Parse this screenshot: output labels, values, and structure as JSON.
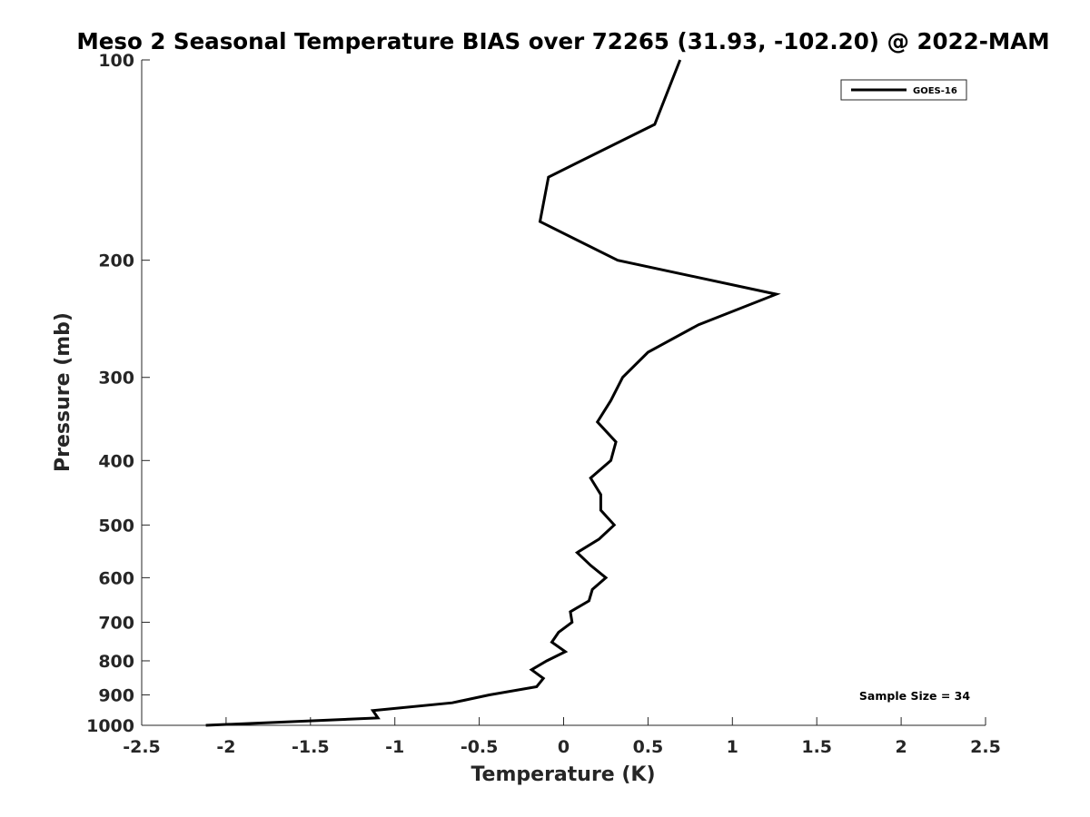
{
  "chart_data": {
    "type": "line",
    "title": "Meso 2 Seasonal Temperature BIAS over 72265 (31.93, -102.20) @ 2022-MAM",
    "xlabel": "Temperature (K)",
    "ylabel": "Pressure (mb)",
    "xlim": [
      -2.5,
      2.5
    ],
    "ylim": [
      100,
      1000
    ],
    "yscale": "log",
    "y_reversed": true,
    "x_ticks": [
      "-2.5",
      "-2",
      "-1.5",
      "-1",
      "-0.5",
      "0",
      "0.5",
      "1",
      "1.5",
      "2",
      "2.5"
    ],
    "y_ticks": [
      "100",
      "200",
      "300",
      "400",
      "500",
      "600",
      "700",
      "800",
      "900",
      "1000"
    ],
    "grid": false,
    "legend_position": "top-right",
    "annotation": "Sample Size = 34",
    "series": [
      {
        "name": "GOES-16",
        "color": "#000000",
        "points": [
          [
            0.69,
            100
          ],
          [
            0.54,
            125
          ],
          [
            -0.09,
            150
          ],
          [
            -0.14,
            175
          ],
          [
            0.32,
            200
          ],
          [
            1.26,
            225
          ],
          [
            0.8,
            250
          ],
          [
            0.5,
            275
          ],
          [
            0.35,
            300
          ],
          [
            0.28,
            325
          ],
          [
            0.2,
            350
          ],
          [
            0.31,
            375
          ],
          [
            0.28,
            400
          ],
          [
            0.16,
            425
          ],
          [
            0.22,
            450
          ],
          [
            0.22,
            475
          ],
          [
            0.3,
            500
          ],
          [
            0.21,
            525
          ],
          [
            0.08,
            550
          ],
          [
            0.16,
            575
          ],
          [
            0.25,
            600
          ],
          [
            0.17,
            625
          ],
          [
            0.15,
            650
          ],
          [
            0.04,
            675
          ],
          [
            0.05,
            700
          ],
          [
            -0.03,
            725
          ],
          [
            -0.07,
            750
          ],
          [
            0.01,
            775
          ],
          [
            -0.1,
            800
          ],
          [
            -0.19,
            825
          ],
          [
            -0.12,
            850
          ],
          [
            -0.16,
            875
          ],
          [
            -0.44,
            900
          ],
          [
            -0.66,
            925
          ],
          [
            -1.13,
            950
          ],
          [
            -1.1,
            975
          ],
          [
            -2.12,
            1000
          ]
        ]
      }
    ]
  }
}
